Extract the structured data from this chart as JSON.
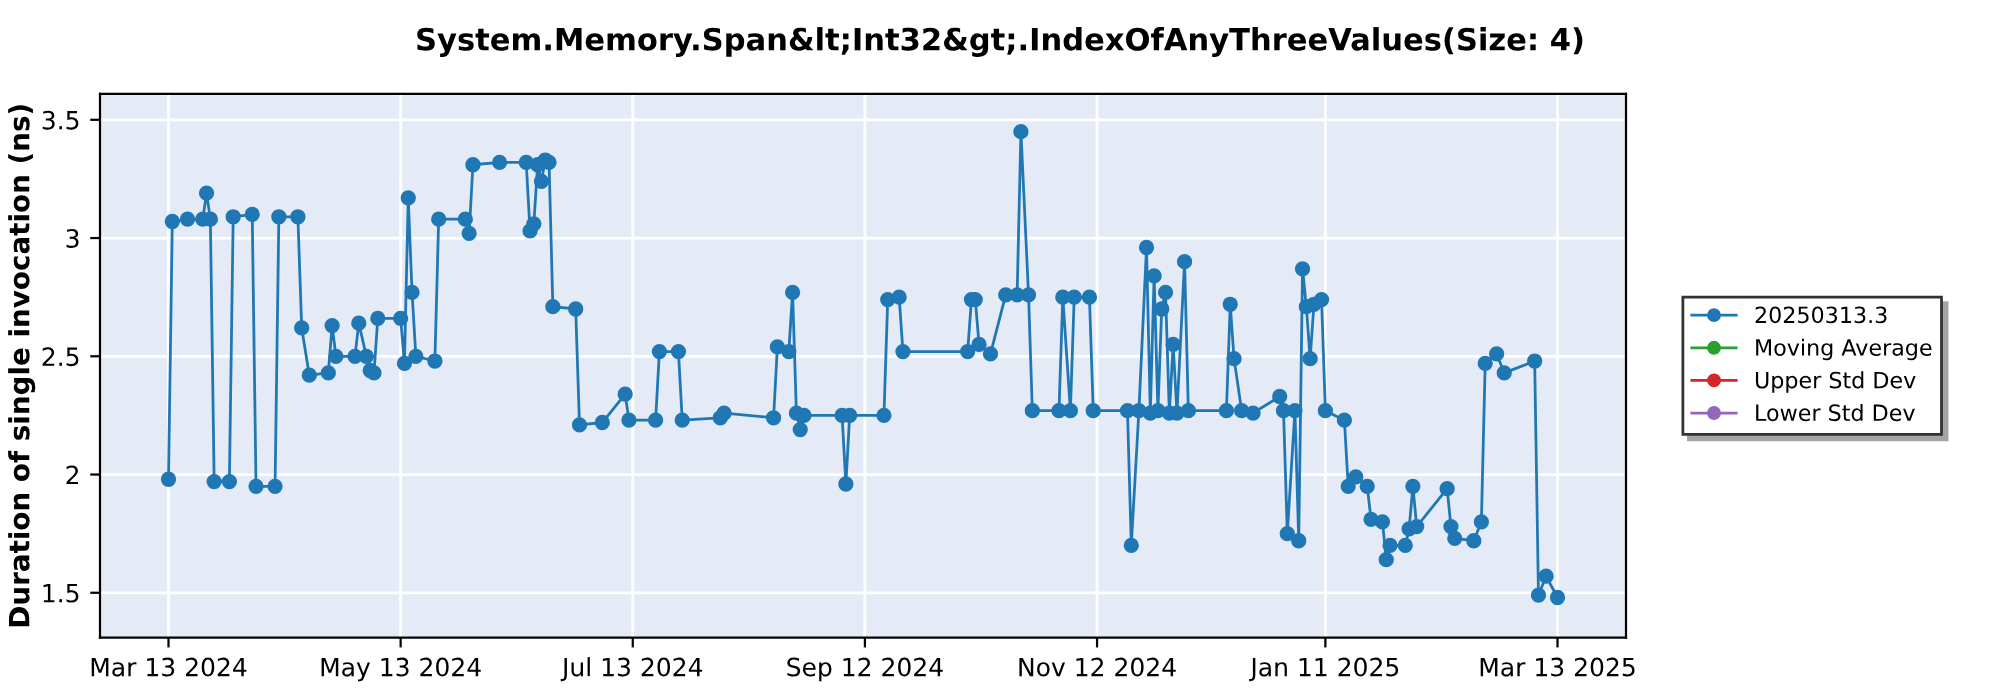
{
  "chart_data": {
    "type": "line",
    "title": "System.Memory.Span&lt;Int32&gt;.IndexOfAnyThreeValues(Size: 4)",
    "ylabel": "Duration of single invocation (ns)",
    "xlim": [
      "2024-02-24",
      "2025-03-31"
    ],
    "ylim": [
      1.31,
      3.61
    ],
    "xticks": [
      {
        "value": "2024-03-13",
        "label": "Mar 13 2024"
      },
      {
        "value": "2024-05-13",
        "label": "May 13 2024"
      },
      {
        "value": "2024-07-13",
        "label": "Jul 13 2024"
      },
      {
        "value": "2024-09-12",
        "label": "Sep 12 2024"
      },
      {
        "value": "2024-11-12",
        "label": "Nov 12 2024"
      },
      {
        "value": "2025-01-11",
        "label": "Jan 11 2025"
      },
      {
        "value": "2025-03-13",
        "label": "Mar 13 2025"
      }
    ],
    "yticks": [
      1.5,
      2,
      2.5,
      3,
      3.5
    ],
    "grid": true,
    "legend": "right",
    "marker": "circle",
    "line_style": "solid",
    "series": [
      {
        "name": "20250313.3",
        "color": "#1f77b4",
        "x": [
          "2024-03-13",
          "2024-03-14",
          "2024-03-18",
          "2024-03-22",
          "2024-03-23",
          "2024-03-24",
          "2024-03-25",
          "2024-03-29",
          "2024-03-30",
          "2024-04-04",
          "2024-04-05",
          "2024-04-10",
          "2024-04-11",
          "2024-04-16",
          "2024-04-17",
          "2024-04-19",
          "2024-04-24",
          "2024-04-25",
          "2024-04-26",
          "2024-05-01",
          "2024-05-02",
          "2024-05-04",
          "2024-05-05",
          "2024-05-06",
          "2024-05-07",
          "2024-05-13",
          "2024-05-14",
          "2024-05-15",
          "2024-05-16",
          "2024-05-17",
          "2024-05-22",
          "2024-05-23",
          "2024-05-30",
          "2024-05-31",
          "2024-06-01",
          "2024-06-08",
          "2024-06-15",
          "2024-06-16",
          "2024-06-17",
          "2024-06-18",
          "2024-06-19",
          "2024-06-20",
          "2024-06-21",
          "2024-06-22",
          "2024-06-28",
          "2024-06-29",
          "2024-07-05",
          "2024-07-11",
          "2024-07-12",
          "2024-07-19",
          "2024-07-20",
          "2024-07-25",
          "2024-07-26",
          "2024-08-05",
          "2024-08-06",
          "2024-08-19",
          "2024-08-20",
          "2024-08-23",
          "2024-08-24",
          "2024-08-25",
          "2024-08-26",
          "2024-08-27",
          "2024-09-06",
          "2024-09-07",
          "2024-09-08",
          "2024-09-17",
          "2024-09-18",
          "2024-09-21",
          "2024-09-22",
          "2024-10-09",
          "2024-10-10",
          "2024-10-11",
          "2024-10-12",
          "2024-10-15",
          "2024-10-19",
          "2024-10-22",
          "2024-10-23",
          "2024-10-25",
          "2024-10-26",
          "2024-11-02",
          "2024-11-03",
          "2024-11-05",
          "2024-11-06",
          "2024-11-10",
          "2024-11-11",
          "2024-11-20",
          "2024-11-21",
          "2024-11-23",
          "2024-11-25",
          "2024-11-26",
          "2024-11-27",
          "2024-11-28",
          "2024-11-29",
          "2024-11-30",
          "2024-12-01",
          "2024-12-02",
          "2024-12-03",
          "2024-12-05",
          "2024-12-06",
          "2024-12-16",
          "2024-12-17",
          "2024-12-18",
          "2024-12-20",
          "2024-12-23",
          "2024-12-30",
          "2024-12-31",
          "2025-01-01",
          "2025-01-03",
          "2025-01-04",
          "2025-01-05",
          "2025-01-06",
          "2025-01-07",
          "2025-01-08",
          "2025-01-10",
          "2025-01-11",
          "2025-01-16",
          "2025-01-17",
          "2025-01-19",
          "2025-01-22",
          "2025-01-23",
          "2025-01-26",
          "2025-01-27",
          "2025-01-28",
          "2025-02-01",
          "2025-02-02",
          "2025-02-03",
          "2025-02-04",
          "2025-02-12",
          "2025-02-13",
          "2025-02-14",
          "2025-02-19",
          "2025-02-21",
          "2025-02-22",
          "2025-02-25",
          "2025-02-27",
          "2025-03-07",
          "2025-03-08",
          "2025-03-10",
          "2025-03-13"
        ],
        "values": [
          1.98,
          3.07,
          3.08,
          3.08,
          3.19,
          3.08,
          1.97,
          1.97,
          3.09,
          3.1,
          1.95,
          1.95,
          3.09,
          3.09,
          2.62,
          2.42,
          2.43,
          2.63,
          2.5,
          2.5,
          2.64,
          2.5,
          2.44,
          2.43,
          2.66,
          2.66,
          2.47,
          3.17,
          2.77,
          2.5,
          2.48,
          3.08,
          3.08,
          3.02,
          3.31,
          3.32,
          3.32,
          3.03,
          3.06,
          3.31,
          3.24,
          3.33,
          3.32,
          2.71,
          2.7,
          2.21,
          2.22,
          2.34,
          2.23,
          2.23,
          2.52,
          2.52,
          2.23,
          2.24,
          2.26,
          2.24,
          2.54,
          2.52,
          2.77,
          2.26,
          2.19,
          2.25,
          2.25,
          1.96,
          2.25,
          2.25,
          2.74,
          2.75,
          2.52,
          2.52,
          2.74,
          2.74,
          2.55,
          2.51,
          2.76,
          2.76,
          3.45,
          2.76,
          2.27,
          2.27,
          2.75,
          2.27,
          2.75,
          2.75,
          2.27,
          2.27,
          1.7,
          2.27,
          2.96,
          2.26,
          2.84,
          2.27,
          2.7,
          2.77,
          2.26,
          2.55,
          2.26,
          2.9,
          2.27,
          2.27,
          2.72,
          2.49,
          2.27,
          2.26,
          2.33,
          2.27,
          1.75,
          2.27,
          1.72,
          2.87,
          2.71,
          2.49,
          2.72,
          2.74,
          2.27,
          2.23,
          1.95,
          1.99,
          1.95,
          1.81,
          1.8,
          1.64,
          1.7,
          1.7,
          1.77,
          1.95,
          1.78,
          1.94,
          1.78,
          1.73,
          1.72,
          1.8,
          2.47,
          2.51,
          2.43,
          2.48,
          1.49,
          1.57,
          1.48
        ]
      },
      {
        "name": "Moving Average",
        "color": "#2ca02c"
      },
      {
        "name": "Upper Std Dev",
        "color": "#d62728"
      },
      {
        "name": "Lower Std Dev",
        "color": "#9467bd"
      }
    ]
  }
}
